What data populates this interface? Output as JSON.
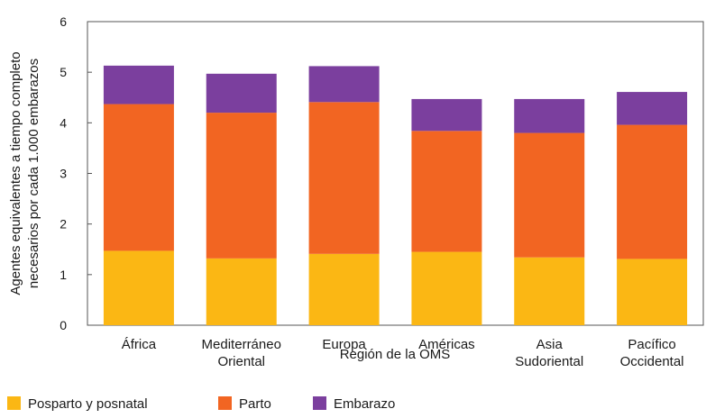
{
  "chart_data": {
    "type": "bar",
    "stacked": true,
    "title": "",
    "xlabel": "Región de la OMS",
    "ylabel": [
      "Agentes equivalentes a tiempo completo",
      "necesarios por cada 1.000 embarazos"
    ],
    "ylim": [
      0,
      6
    ],
    "yticks": [
      "0",
      "1",
      "2",
      "3",
      "4",
      "5",
      "6"
    ],
    "grid": false,
    "legend_position": "bottom-left",
    "categories": [
      [
        "África"
      ],
      [
        "Mediterráneo",
        "Oriental"
      ],
      [
        "Europa"
      ],
      [
        "Américas"
      ],
      [
        "Asia",
        "Sudoriental"
      ],
      [
        "Pacífico",
        "Occidental"
      ]
    ],
    "series": [
      {
        "name": "Posparto y posnatal",
        "color": "#fbb714",
        "values": [
          1.47,
          1.32,
          1.41,
          1.45,
          1.34,
          1.31
        ]
      },
      {
        "name": "Parto",
        "color": "#f26522",
        "values": [
          2.9,
          2.88,
          3.0,
          2.39,
          2.46,
          2.65
        ]
      },
      {
        "name": "Embarazo",
        "color": "#7b3f9e",
        "values": [
          0.76,
          0.77,
          0.71,
          0.63,
          0.67,
          0.65
        ]
      }
    ]
  }
}
